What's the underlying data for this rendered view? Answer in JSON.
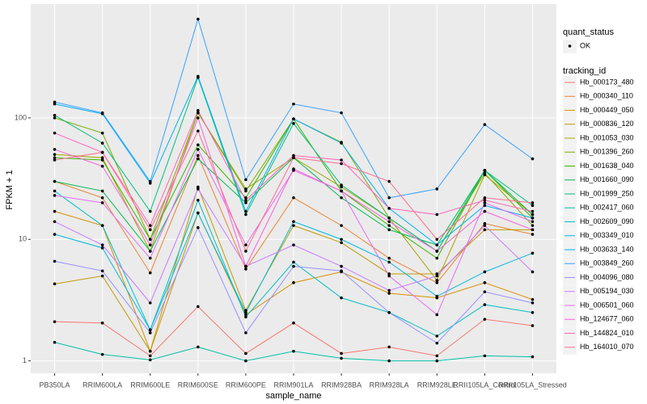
{
  "chart_data": {
    "type": "line",
    "x_label": "sample_name",
    "y_label": "FPKM + 1",
    "log_y": true,
    "grid": true,
    "ylim": [
      0.79,
      865
    ],
    "yticks": [
      1,
      10,
      100
    ],
    "legend_position": "right",
    "status_legend_title": "quant_status",
    "status_legend_entries": [
      "OK"
    ],
    "legend_title": "tracking_id",
    "point_color": "#000000",
    "categories": [
      "PB350LA",
      "RRIM600LA",
      "RRIM600LE",
      "RRIM600SE",
      "RRIM600PE",
      "RRIM901LA",
      "RRIM928BA",
      "RRIM928LA",
      "RRIM928LE",
      "RRII105LA_Control",
      "RRII105LA_Stressed"
    ],
    "series": [
      {
        "name": "Hb_000173_480",
        "color": "#F8766D",
        "values": [
          2.1,
          2.05,
          1.1,
          2.8,
          1.15,
          2.05,
          1.15,
          1.3,
          1.1,
          2.2,
          1.95
        ]
      },
      {
        "name": "Hb_000340_110",
        "color": "#EA8331",
        "values": [
          30,
          22,
          5.3,
          49,
          5.7,
          22,
          13,
          7,
          4.4,
          13.5,
          11
        ]
      },
      {
        "name": "Hb_000449_050",
        "color": "#D89000",
        "values": [
          17,
          13,
          1.2,
          16.5,
          2.4,
          4.4,
          5.4,
          3.6,
          3.3,
          4.4,
          3.2
        ]
      },
      {
        "name": "Hb_000836_120",
        "color": "#C09B00",
        "values": [
          4.3,
          5,
          1.2,
          27,
          2.6,
          13,
          9.4,
          5.2,
          5.2,
          12,
          12
        ]
      },
      {
        "name": "Hb_001053_030",
        "color": "#A3A500",
        "values": [
          50,
          47,
          8,
          110,
          26,
          47,
          27,
          15,
          4.6,
          34,
          16
        ]
      },
      {
        "name": "Hb_001396_260",
        "color": "#7CAE00",
        "values": [
          100,
          75,
          10,
          110,
          25,
          98,
          63,
          15,
          8,
          35,
          13
        ]
      },
      {
        "name": "Hb_001638_040",
        "color": "#39B600",
        "values": [
          47,
          45,
          10,
          60,
          22,
          98,
          25,
          13,
          7,
          37,
          15
        ]
      },
      {
        "name": "Hb_001660_090",
        "color": "#00BB4E",
        "values": [
          30,
          25,
          8,
          46,
          20,
          47,
          22,
          12,
          9,
          37,
          16
        ]
      },
      {
        "name": "Hb_001999_250",
        "color": "#00BF7D",
        "values": [
          105,
          62,
          17,
          215,
          16,
          90,
          28,
          15,
          8,
          37,
          19
        ]
      },
      {
        "name": "Hb_002417_060",
        "color": "#00C1A3",
        "values": [
          1.42,
          1.13,
          1.02,
          1.3,
          1.0,
          1.2,
          1.05,
          1.0,
          1.0,
          1.1,
          1.08
        ]
      },
      {
        "name": "Hb_002609_090",
        "color": "#00BFC4",
        "values": [
          25,
          13,
          1.8,
          21,
          2.3,
          6.5,
          3.3,
          2.5,
          1.6,
          2.9,
          2.5
        ]
      },
      {
        "name": "Hb_003349_010",
        "color": "#00BAE0",
        "values": [
          11,
          8.5,
          1.8,
          16.5,
          2.5,
          14,
          10,
          6.5,
          3.4,
          5.4,
          7.7
        ]
      },
      {
        "name": "Hb_003633_140",
        "color": "#00B0F6",
        "values": [
          130,
          108,
          29,
          220,
          17,
          98,
          62,
          18,
          9,
          19,
          15
        ]
      },
      {
        "name": "Hb_003849_260",
        "color": "#35A2FF",
        "values": [
          135,
          110,
          30,
          650,
          31,
          130,
          110,
          22,
          26,
          88,
          46
        ]
      },
      {
        "name": "Hb_004096_080",
        "color": "#9590FF",
        "values": [
          6.6,
          5.5,
          1.7,
          12.5,
          1.7,
          6,
          5.5,
          2.5,
          1.4,
          3.7,
          3
        ]
      },
      {
        "name": "Hb_005194_030",
        "color": "#C77CFF",
        "values": [
          14,
          9,
          3,
          26,
          6,
          9,
          6,
          3.8,
          5,
          13,
          5.4
        ]
      },
      {
        "name": "Hb_006501_060",
        "color": "#E76BF3",
        "values": [
          23,
          20,
          7,
          55,
          9,
          37,
          25,
          5,
          2.4,
          20,
          14
        ]
      },
      {
        "name": "Hb_124677_060",
        "color": "#FA62DB",
        "values": [
          55,
          40,
          9,
          100,
          6,
          38,
          25,
          14,
          8,
          17,
          12
        ]
      },
      {
        "name": "Hb_144824_010",
        "color": "#FF62BC",
        "values": [
          75,
          52,
          13,
          115,
          21,
          49,
          45,
          18,
          16,
          21,
          17
        ]
      },
      {
        "name": "Hb_164010_070",
        "color": "#FF6C91",
        "values": [
          45,
          52,
          12,
          78,
          8,
          47,
          42,
          30,
          10,
          22,
          20
        ]
      }
    ]
  }
}
